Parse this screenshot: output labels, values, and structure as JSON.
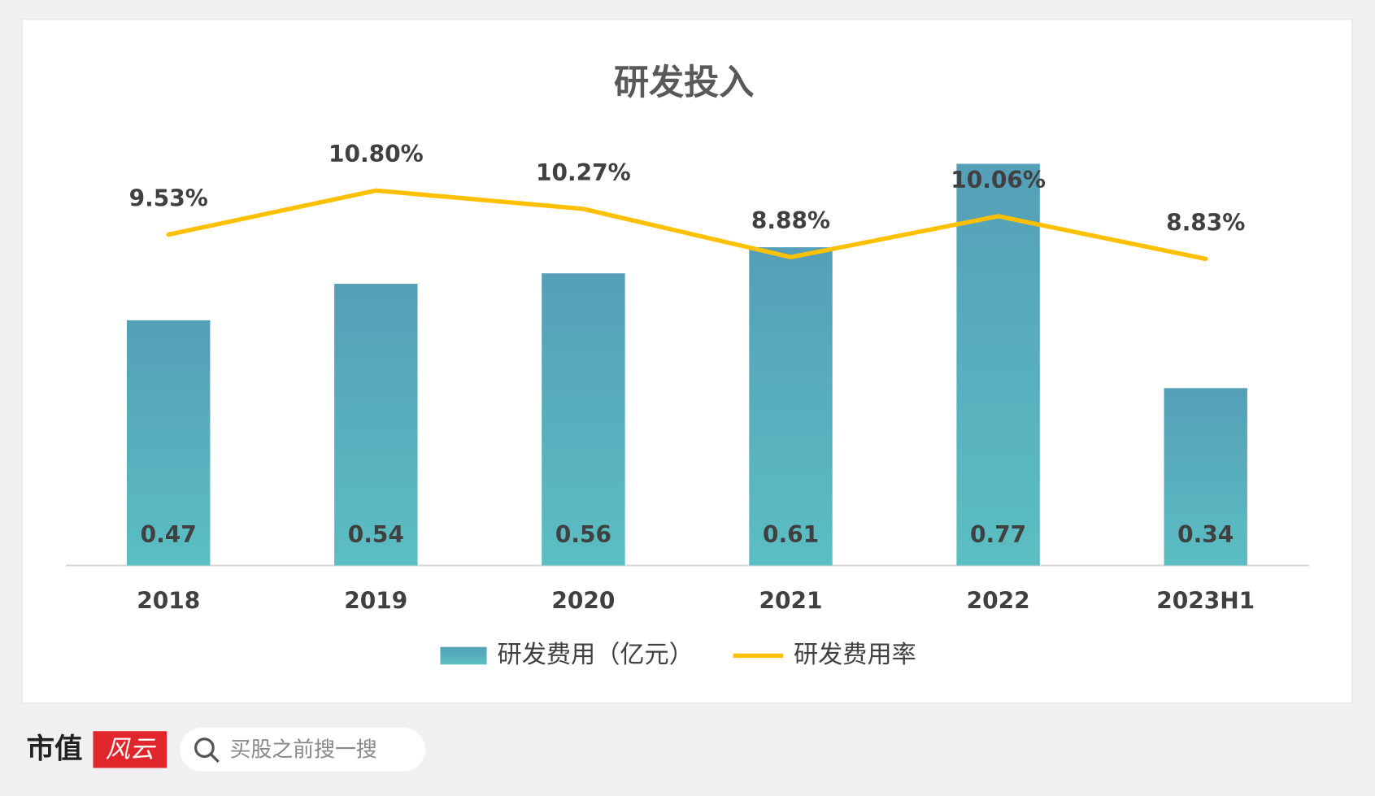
{
  "chart_data": {
    "type": "bar",
    "title": "研发投入",
    "categories": [
      "2018",
      "2019",
      "2020",
      "2021",
      "2022",
      "2023H1"
    ],
    "series": [
      {
        "name": "研发费用（亿元）",
        "type": "bar",
        "color": "#57acbd",
        "values": [
          0.47,
          0.54,
          0.56,
          0.61,
          0.77,
          0.34
        ]
      },
      {
        "name": "研发费用率",
        "type": "line",
        "color": "#ffc000",
        "values": [
          9.53,
          10.8,
          10.27,
          8.88,
          10.06,
          8.83
        ],
        "value_labels": [
          "9.53%",
          "10.80%",
          "10.27%",
          "8.88%",
          "10.06%",
          "8.83%"
        ]
      }
    ],
    "legend": "bottom"
  },
  "footer": {
    "brand_name": "市值",
    "brand_mark": "风云",
    "search_placeholder": "买股之前搜一搜"
  }
}
